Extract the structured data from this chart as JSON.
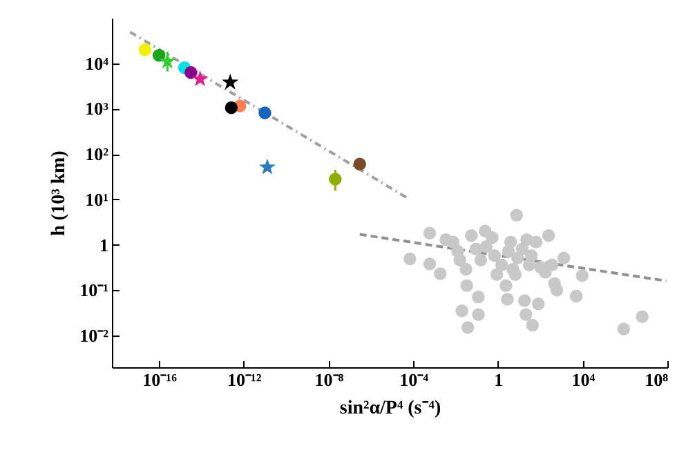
{
  "chart_data": {
    "type": "scatter",
    "xlabel": "sin²α/P⁴ (s⁻⁴)",
    "ylabel": "h (10³ km)",
    "log": "xy",
    "grid": false,
    "xlim": [
      6e-19,
      100000000.0
    ],
    "ylim": [
      0.002,
      100000
    ],
    "xticks": [
      {
        "value": 1e-16,
        "label": "10⁻¹⁶"
      },
      {
        "value": 1e-12,
        "label": "10⁻¹²"
      },
      {
        "value": 1e-08,
        "label": "10⁻⁸"
      },
      {
        "value": 0.0001,
        "label": "10⁻⁴"
      },
      1,
      {
        "value": 10000,
        "label": "10⁴"
      },
      {
        "value": 100000000,
        "label": "10⁸"
      }
    ],
    "yticks": [
      {
        "value": 0.01,
        "label": "10⁻²"
      },
      {
        "value": 0.1,
        "label": "10⁻¹"
      },
      1,
      {
        "value": 10,
        "label": "10¹"
      },
      {
        "value": 100,
        "label": "10²"
      },
      {
        "value": 1000,
        "label": "10³"
      },
      {
        "value": 10000,
        "label": "10⁴"
      }
    ],
    "series": [
      {
        "type": "line",
        "line_style": "dotted",
        "color": "#a0a0a0",
        "x": [
          4.3e-18,
          5.8e-05
        ],
        "values": [
          49000,
          10.5
        ]
      },
      {
        "type": "line",
        "line_style": "dashed",
        "color": "#909090",
        "x": [
          3e-07,
          89000000.0
        ],
        "values": [
          1.7,
          0.16
        ]
      },
      {
        "marker": "circle",
        "color": "#c8c8c8",
        "x": [
          7e-05,
          0.0006,
          0.0006,
          0.0019,
          0.0035,
          0.0076,
          0.0126,
          0.016,
          0.031,
          0.034,
          0.056,
          0.093,
          0.12,
          0.155,
          0.25,
          0.28,
          0.54,
          0.69,
          0.89,
          1.5,
          1.9,
          2.4,
          3.1,
          4,
          5.1,
          6.6,
          7.6,
          8.5,
          14,
          18,
          23,
          30,
          38,
          63,
          81,
          105,
          174,
          245,
          363,
          468,
          603,
          1290,
          5000,
          9550,
          0.02,
          0.038,
          0.12,
          21,
          43,
          2.8,
          870000,
          6500000
        ],
        "values": [
          0.49,
          1.8,
          0.38,
          0.23,
          1.3,
          1.15,
          0.72,
          0.46,
          0.29,
          0.126,
          1.6,
          0.81,
          0.071,
          0.46,
          2.0,
          0.91,
          1.45,
          0.58,
          0.22,
          0.36,
          null,
          0.126,
          0.72,
          1.15,
          0.29,
          0.22,
          4.5,
          0.51,
          0.81,
          0.059,
          1.3,
          0.36,
          0.58,
          1.15,
          0.05,
          0.32,
          0.25,
          1.6,
          0.36,
          0.14,
          0.1,
          0.51,
          0.074,
          0.21,
          0.035,
          0.015,
          0.029,
          0.029,
          0.017,
          0.063,
          0.014,
          0.026
        ]
      },
      {
        "marker": "circle",
        "color": "#f0f000",
        "x": [
          2.2e-17
        ],
        "values": [
          20000
        ]
      },
      {
        "marker": "circle",
        "color": "#1aa51a",
        "x": [
          1e-16
        ],
        "values": [
          15000
        ]
      },
      {
        "marker": "star",
        "color": "#32cd32",
        "x": [
          2.5e-16
        ],
        "values": [
          11000
        ],
        "errors": [
          [
            6600,
            18000
          ]
        ]
      },
      {
        "marker": "circle",
        "color": "#00e0e0",
        "x": [
          1.6e-15
        ],
        "values": [
          8000
        ]
      },
      {
        "marker": "circle",
        "color": "#8b008b",
        "x": [
          3.2e-15
        ],
        "values": [
          6300
        ]
      },
      {
        "marker": "star",
        "color": "#e0208f",
        "x": [
          8.7e-15
        ],
        "values": [
          4500
        ]
      },
      {
        "marker": "star",
        "color": "#000000",
        "x": [
          2.3e-13
        ],
        "values": [
          3800
        ]
      },
      {
        "marker": "circle",
        "color": "#ff7f50",
        "x": [
          6.6e-13
        ],
        "values": [
          1150
        ]
      },
      {
        "marker": "circle",
        "color": "#000000",
        "x": [
          2.6e-13
        ],
        "values": [
          1050
        ]
      },
      {
        "marker": "circle",
        "color": "#1565c0",
        "x": [
          1e-11
        ],
        "values": [
          810
        ]
      },
      {
        "marker": "star",
        "color": "#2a7ac0",
        "x": [
          1.3e-11
        ],
        "values": [
          51
        ]
      },
      {
        "marker": "circle",
        "color": "#8fb000",
        "x": [
          2.1e-08
        ],
        "values": [
          28
        ],
        "errors": [
          [
            15.5,
            45
          ]
        ]
      },
      {
        "marker": "circle",
        "color": "#7b4a2a",
        "x": [
          3e-07
        ],
        "values": [
          60
        ]
      }
    ]
  }
}
